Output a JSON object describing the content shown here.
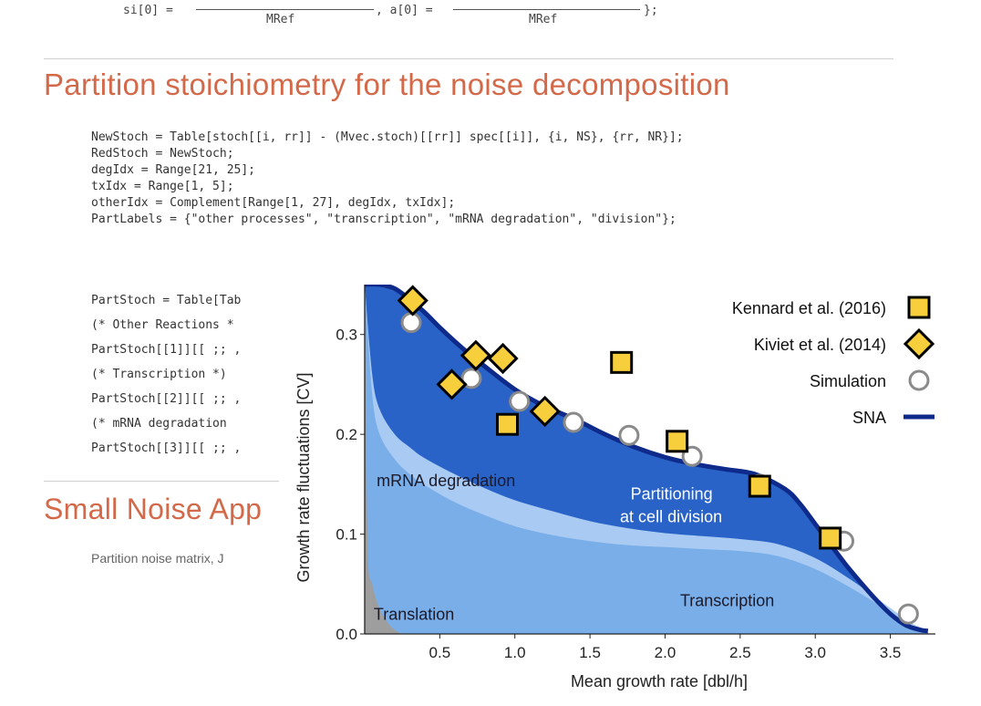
{
  "notebook": {
    "top_line": {
      "si_label": "si[0] =",
      "si_denominator": "MRef",
      "a_label": ", a[0] =",
      "a_denominator": "MRef",
      "end": "};"
    },
    "section1_title": "Partition stoichiometry for the noise decomposition",
    "code_block_1": [
      "NewStoch = Table[stoch[[i, rr]] - (Mvec.stoch)[[rr]] spec[[i]], {i, NS}, {rr, NR}];",
      "RedStoch = NewStoch;",
      "degIdx = Range[21, 25];",
      "txIdx = Range[1, 5];",
      "otherIdx = Complement[Range[1, 27], degIdx, txIdx];",
      "PartLabels = {\"other processes\", \"transcription\", \"mRNA degradation\", \"division\"};"
    ],
    "code_block_2": [
      "PartStoch = Table[Tab",
      "(* Other Reactions *",
      "PartStoch[[1]][[ ;; ,",
      "(* Transcription *)",
      "PartStoch[[2]][[ ;; ,",
      "(* mRNA degradation",
      "PartStoch[[3]][[ ;; ,"
    ],
    "section2_title": "Small Noise App",
    "section2_text": "Partition noise matrix, J"
  },
  "chart_data": {
    "type": "area",
    "title": "",
    "xlabel": "Mean growth rate [dbl/h]",
    "ylabel": "Growth rate fluctuations [CV]",
    "xlim": [
      0,
      3.8
    ],
    "ylim": [
      0,
      0.35
    ],
    "xticks": [
      "0.5",
      "1.0",
      "1.5",
      "2.0",
      "2.5",
      "3.0",
      "3.5"
    ],
    "xtick_values": [
      0.5,
      1.0,
      1.5,
      2.0,
      2.5,
      3.0,
      3.5
    ],
    "yticks": [
      "0.0",
      "0.1",
      "0.2",
      "0.3"
    ],
    "ytick_values": [
      0.0,
      0.1,
      0.2,
      0.3
    ],
    "areas": [
      {
        "name": "Translation",
        "color": "#9e9e9e",
        "x": [
          0.0,
          0.02,
          0.05,
          0.1,
          0.15,
          0.2,
          0.25
        ],
        "y": [
          0.35,
          0.09,
          0.05,
          0.025,
          0.012,
          0.004,
          0.0
        ]
      },
      {
        "name": "Transcription",
        "color": "#7aaee8",
        "x": [
          0.0,
          0.05,
          0.1,
          0.2,
          0.3,
          0.4,
          0.6,
          0.8,
          1.0,
          1.25,
          1.5,
          1.75,
          2.0,
          2.25,
          2.5,
          2.75,
          3.0,
          3.25,
          3.5,
          3.65,
          3.75
        ],
        "y": [
          0.35,
          0.24,
          0.2,
          0.175,
          0.16,
          0.149,
          0.132,
          0.119,
          0.108,
          0.099,
          0.093,
          0.089,
          0.087,
          0.085,
          0.083,
          0.078,
          0.065,
          0.045,
          0.022,
          0.008,
          0.003
        ]
      },
      {
        "name": "mRNA degradation",
        "color": "#a9cbf3",
        "x": [
          0.0,
          0.05,
          0.1,
          0.2,
          0.3,
          0.4,
          0.6,
          0.8,
          1.0,
          1.25,
          1.5,
          1.75,
          2.0,
          2.25,
          2.5,
          2.75,
          3.0,
          3.25,
          3.5,
          3.65,
          3.75
        ],
        "y": [
          0.35,
          0.26,
          0.225,
          0.2,
          0.187,
          0.176,
          0.16,
          0.146,
          0.134,
          0.123,
          0.113,
          0.106,
          0.101,
          0.098,
          0.095,
          0.09,
          0.076,
          0.053,
          0.026,
          0.01,
          0.004
        ]
      },
      {
        "name": "Partitioning at cell division",
        "color": "#2a63c8",
        "x": [
          0.0,
          0.1,
          0.2,
          0.3,
          0.4,
          0.5,
          0.6,
          0.7,
          0.8,
          1.0,
          1.2,
          1.4,
          1.6,
          1.8,
          2.0,
          2.2,
          2.4,
          2.6,
          2.8,
          2.9,
          3.0,
          3.1,
          3.2,
          3.3,
          3.4,
          3.5,
          3.6,
          3.7,
          3.75
        ],
        "y": [
          0.35,
          0.35,
          0.346,
          0.335,
          0.322,
          0.307,
          0.293,
          0.28,
          0.268,
          0.245,
          0.228,
          0.215,
          0.2,
          0.187,
          0.177,
          0.17,
          0.165,
          0.16,
          0.145,
          0.13,
          0.11,
          0.09,
          0.07,
          0.052,
          0.035,
          0.02,
          0.009,
          0.004,
          0.003
        ]
      }
    ],
    "region_labels": [
      {
        "text": "mRNA degradation",
        "x": 0.08,
        "y": 0.148
      },
      {
        "text": "Partitioning",
        "x": 1.77,
        "y": 0.135
      },
      {
        "text": "at cell division",
        "x": 1.7,
        "y": 0.112
      },
      {
        "text": "Transcription",
        "x": 2.1,
        "y": 0.028
      },
      {
        "text": "Translation",
        "x": 0.06,
        "y": 0.014
      }
    ],
    "series": [
      {
        "name": "Kennard et al. (2016)",
        "marker": "square",
        "x": [
          0.95,
          1.71,
          2.08,
          2.63,
          3.1
        ],
        "y": [
          0.21,
          0.272,
          0.193,
          0.148,
          0.096
        ]
      },
      {
        "name": "Kiviet et al. (2014)",
        "marker": "diamond",
        "x": [
          0.32,
          0.58,
          0.74,
          0.92,
          1.2
        ],
        "y": [
          0.334,
          0.25,
          0.279,
          0.276,
          0.223
        ]
      },
      {
        "name": "Simulation",
        "marker": "circle",
        "x": [
          0.31,
          0.71,
          1.03,
          1.39,
          1.76,
          2.18,
          2.63,
          3.19,
          3.62
        ],
        "y": [
          0.312,
          0.256,
          0.233,
          0.212,
          0.199,
          0.178,
          0.15,
          0.093,
          0.02
        ]
      },
      {
        "name": "SNA",
        "marker": "line",
        "color": "#0e2a8a",
        "x": [
          0.0,
          0.1,
          0.2,
          0.3,
          0.4,
          0.5,
          0.6,
          0.7,
          0.8,
          1.0,
          1.2,
          1.4,
          1.6,
          1.8,
          2.0,
          2.2,
          2.4,
          2.6,
          2.8,
          2.9,
          3.0,
          3.1,
          3.2,
          3.3,
          3.4,
          3.5,
          3.6,
          3.7,
          3.75
        ],
        "y": [
          0.35,
          0.35,
          0.346,
          0.335,
          0.322,
          0.307,
          0.293,
          0.28,
          0.268,
          0.245,
          0.228,
          0.215,
          0.2,
          0.187,
          0.177,
          0.17,
          0.165,
          0.16,
          0.145,
          0.13,
          0.11,
          0.09,
          0.07,
          0.052,
          0.035,
          0.02,
          0.009,
          0.004,
          0.003
        ]
      }
    ],
    "legend": {
      "placement": "top-right",
      "entries": [
        "Kennard et al. (2016)",
        "Kiviet et al. (2014)",
        "Simulation",
        "SNA"
      ]
    },
    "colors": {
      "marker_fill": "#f7cf3c",
      "sna_line": "#0e2a8a",
      "axis": "#222222"
    }
  }
}
